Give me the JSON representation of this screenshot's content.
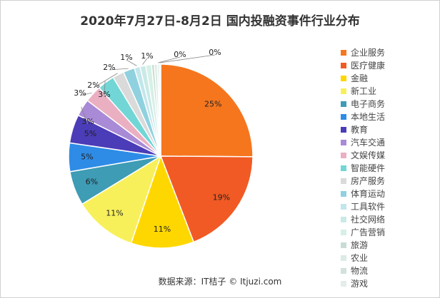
{
  "chart_data": {
    "type": "pie",
    "title": "2020年7月27日-8月2日 国内投融资事件行业分布",
    "unit": "%",
    "slices": [
      {
        "name": "企业服务",
        "value": 25,
        "label": "25%",
        "color": "#F6761E"
      },
      {
        "name": "医疗健康",
        "value": 19,
        "label": "19%",
        "color": "#F15A24"
      },
      {
        "name": "金融",
        "value": 11,
        "label": "11%",
        "color": "#FFD700"
      },
      {
        "name": "新工业",
        "value": 11,
        "label": "11%",
        "color": "#F7F05A"
      },
      {
        "name": "电子商务",
        "value": 6,
        "label": "6%",
        "color": "#3E9CB5"
      },
      {
        "name": "本地生活",
        "value": 5,
        "label": "5%",
        "color": "#2E8CE6"
      },
      {
        "name": "教育",
        "value": 5,
        "label": "5%",
        "color": "#4B3CB8"
      },
      {
        "name": "汽车交通",
        "value": 3,
        "label": "3%",
        "color": "#A98AD6"
      },
      {
        "name": "文娱传媒",
        "value": 3,
        "label": "3%",
        "color": "#EBAFC2"
      },
      {
        "name": "智能硬件",
        "value": 3,
        "label": "3%",
        "color": "#72D6D6"
      },
      {
        "name": "房产服务",
        "value": 2,
        "label": "2%",
        "color": "#DADADA"
      },
      {
        "name": "体育运动",
        "value": 2,
        "label": "2%",
        "color": "#8FD1DF"
      },
      {
        "name": "工具软件",
        "value": 1,
        "label": "1%",
        "color": "#C2E6EC"
      },
      {
        "name": "社交网络",
        "value": 1,
        "label": "1%",
        "color": "#C9EAE6"
      },
      {
        "name": "广告营销",
        "value": 1,
        "label": "",
        "color": "#D6F0E6"
      },
      {
        "name": "旅游",
        "value": 0.5,
        "label": "",
        "color": "#C8DDD4"
      },
      {
        "name": "农业",
        "value": 0.5,
        "label": "",
        "color": "#DCEBE3"
      },
      {
        "name": "物流",
        "value": 0.3,
        "label": "0%",
        "color": "#D1E2DA"
      },
      {
        "name": "游戏",
        "value": 0.3,
        "label": "0%",
        "color": "#E3EEE8"
      }
    ]
  },
  "footer": {
    "source": "数据来源：IT桔子 © Itjuzi.com"
  }
}
